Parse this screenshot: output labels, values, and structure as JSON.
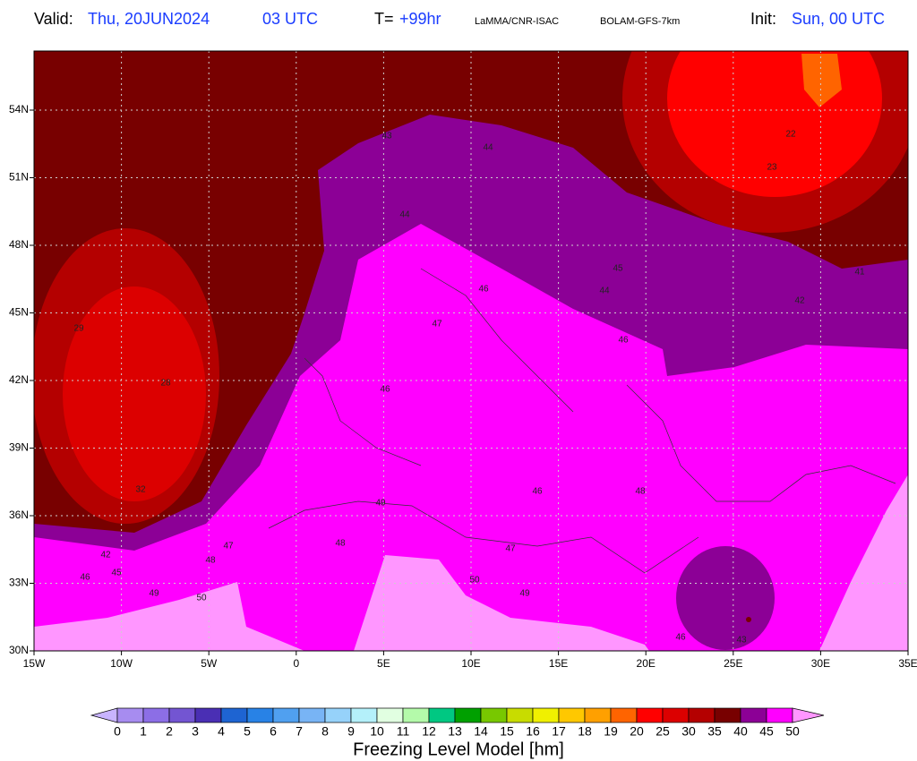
{
  "header": {
    "valid_label": "Valid:",
    "valid_date": "Thu, 20JUN2024",
    "valid_time": "03 UTC",
    "lead_label": "T=",
    "lead_value": "+99hr",
    "source": "LaMMA/CNR-ISAC",
    "model": "BOLAM-GFS-7km",
    "init_label": "Init:",
    "init_value": "Sun, 00 UTC"
  },
  "map": {
    "lon_labels": [
      "15W",
      "10W",
      "5W",
      "0",
      "5E",
      "10E",
      "15E",
      "20E",
      "25E",
      "30E",
      "35E"
    ],
    "lat_labels": [
      "30N",
      "33N",
      "36N",
      "39N",
      "42N",
      "45N",
      "48N",
      "51N",
      "54N"
    ],
    "contour_labels": [
      "42",
      "46",
      "45",
      "49",
      "50",
      "47",
      "48",
      "48",
      "49",
      "46",
      "47",
      "46",
      "45",
      "44",
      "46",
      "41",
      "42",
      "22",
      "23",
      "46",
      "48",
      "47",
      "49",
      "50",
      "46",
      "43",
      "29",
      "28",
      "32",
      "44",
      "43",
      "44"
    ]
  },
  "colorbar": {
    "title": "Freezing Level Model [hm]",
    "labels": [
      0,
      1,
      2,
      3,
      4,
      5,
      6,
      7,
      8,
      9,
      10,
      11,
      12,
      13,
      14,
      15,
      16,
      17,
      18,
      19,
      20,
      25,
      30,
      35,
      40,
      45,
      50
    ],
    "colors": [
      "#a78cf0",
      "#8c6ee6",
      "#7355d2",
      "#4a2fb4",
      "#1e64d2",
      "#2882e6",
      "#50a0f0",
      "#78b4f5",
      "#96d2fa",
      "#b4f0fa",
      "#e1ffe1",
      "#b4faaa",
      "#00c882",
      "#00a000",
      "#78c800",
      "#c8dc00",
      "#f0f000",
      "#ffc800",
      "#ffa000",
      "#ff6400",
      "#ff0000",
      "#dc0000",
      "#b40000",
      "#780000",
      "#8c0096",
      "#ff00ff"
    ],
    "under_color": "#c8b4ff",
    "over_color": "#ff96ff"
  }
}
